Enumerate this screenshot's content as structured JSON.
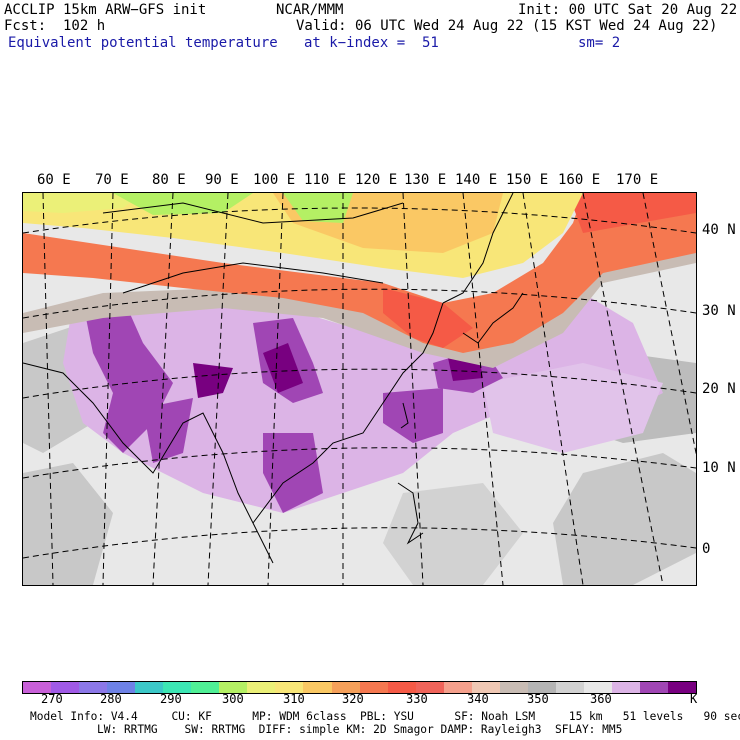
{
  "header": {
    "model": "ACCLIP 15km ARW−GFS init",
    "org": "NCAR/MMM",
    "init": "Init: 00 UTC Sat 20 Aug 22",
    "fcst": "Fcst:  102 h",
    "valid": "Valid: 06 UTC Wed 24 Aug 22 (15 KST Wed 24 Aug 22)",
    "field": "Equivalent potential temperature",
    "level": "at k−index =  51",
    "smooth": "sm= 2"
  },
  "map": {
    "lon_labels": [
      "60 E",
      "70 E",
      "80 E",
      "90 E",
      "100 E",
      "110 E",
      "120 E",
      "130 E",
      "140 E",
      "150 E",
      "160 E",
      "170 E"
    ],
    "lat_labels": [
      "40 N",
      "30 N",
      "20 N",
      "10 N",
      "0"
    ]
  },
  "colorbar": {
    "colors": [
      "#c860d8",
      "#a05ae6",
      "#8c78e8",
      "#6e82e6",
      "#3cc8c8",
      "#3ce6b4",
      "#50f096",
      "#b4f064",
      "#ebf078",
      "#f8e678",
      "#fac864",
      "#f5a05a",
      "#f57850",
      "#f55a46",
      "#f0645a",
      "#f5a08c",
      "#f0c8b4",
      "#c8bcb4",
      "#b4b4b4",
      "#d2d2d2",
      "#e8e8e8",
      "#dcb4e6",
      "#a046b4",
      "#780080"
    ],
    "ticks": [
      "270",
      "280",
      "290",
      "300",
      "310",
      "320",
      "330",
      "340",
      "350",
      "360",
      "K"
    ]
  },
  "footer": {
    "line1": "Model Info: V4.4     CU: KF      MP: WDM 6class  PBL: YSU      SF: Noah LSM     15 km   51 levels   90 sec",
    "line2": "LW: RRTMG    SW: RRTMG  DIFF: simple KM: 2D Smagor DAMP: Rayleigh3  SFLAY: MM5"
  }
}
